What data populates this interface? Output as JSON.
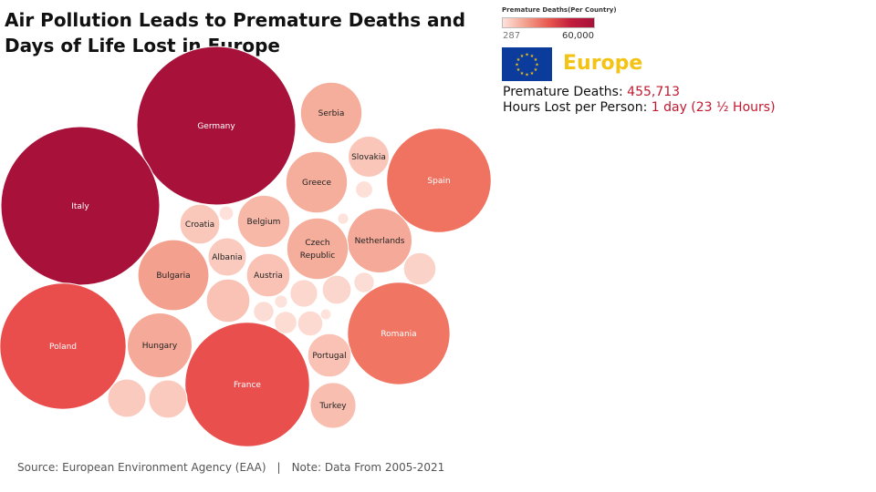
{
  "title": "Air Pollution Leads to Premature Deaths and Days of Life Lost in Europe",
  "legend": {
    "title": "Premature Deaths(Per Country)",
    "min_label": "287",
    "max_label": "60,000"
  },
  "region": {
    "name": "Europe",
    "deaths_label": "Premature Deaths:",
    "deaths_value": "455,713",
    "hours_label": "Hours Lost per Person:",
    "hours_value": "1 day (23 ½ Hours)"
  },
  "footer": {
    "source": "Source: European Environment Agency (EAA)",
    "separator": "|",
    "note": "Note: Data From 2005-2021"
  },
  "colors": {
    "accent_gold": "#f3c316",
    "value_red": "#c0182f",
    "flag_blue": "#0b3c9c"
  },
  "chart_data": {
    "type": "bubble",
    "title": "",
    "color_scale": {
      "min": 287,
      "max": 60000
    },
    "bubbles": [
      {
        "name": "Germany",
        "value": 60000
      },
      {
        "name": "Italy",
        "value": 60000
      },
      {
        "name": "Poland",
        "value": 38000
      },
      {
        "name": "France",
        "value": 37000
      },
      {
        "name": "Spain",
        "value": 26000
      },
      {
        "name": "Romania",
        "value": 25000
      },
      {
        "name": "Bulgaria",
        "value": 12000
      },
      {
        "name": "Netherlands",
        "value": 10000
      },
      {
        "name": "Czech Republic",
        "value": 9000
      },
      {
        "name": "Greece",
        "value": 9000
      },
      {
        "name": "Serbia",
        "value": 9000
      },
      {
        "name": "Hungary",
        "value": 10000
      },
      {
        "name": "Belgium",
        "value": 6500
      },
      {
        "name": "Portugal",
        "value": 4500
      },
      {
        "name": "Turkey",
        "value": 5000
      },
      {
        "name": "Austria",
        "value": 4500
      },
      {
        "name": "Croatia",
        "value": 3800
      },
      {
        "name": "Albania",
        "value": 3500
      },
      {
        "name": "Slovakia",
        "value": 4000
      },
      {
        "name": "",
        "value": 4500
      },
      {
        "name": "",
        "value": 3500
      },
      {
        "name": "",
        "value": 3500
      },
      {
        "name": "",
        "value": 2500
      },
      {
        "name": "",
        "value": 2000
      },
      {
        "name": "",
        "value": 1800
      },
      {
        "name": "",
        "value": 1500
      },
      {
        "name": "",
        "value": 1200
      },
      {
        "name": "",
        "value": 1000
      },
      {
        "name": "",
        "value": 1000
      },
      {
        "name": "",
        "value": 700
      },
      {
        "name": "",
        "value": 500
      },
      {
        "name": "",
        "value": 400
      },
      {
        "name": "",
        "value": 300
      },
      {
        "name": "",
        "value": 287
      }
    ]
  }
}
